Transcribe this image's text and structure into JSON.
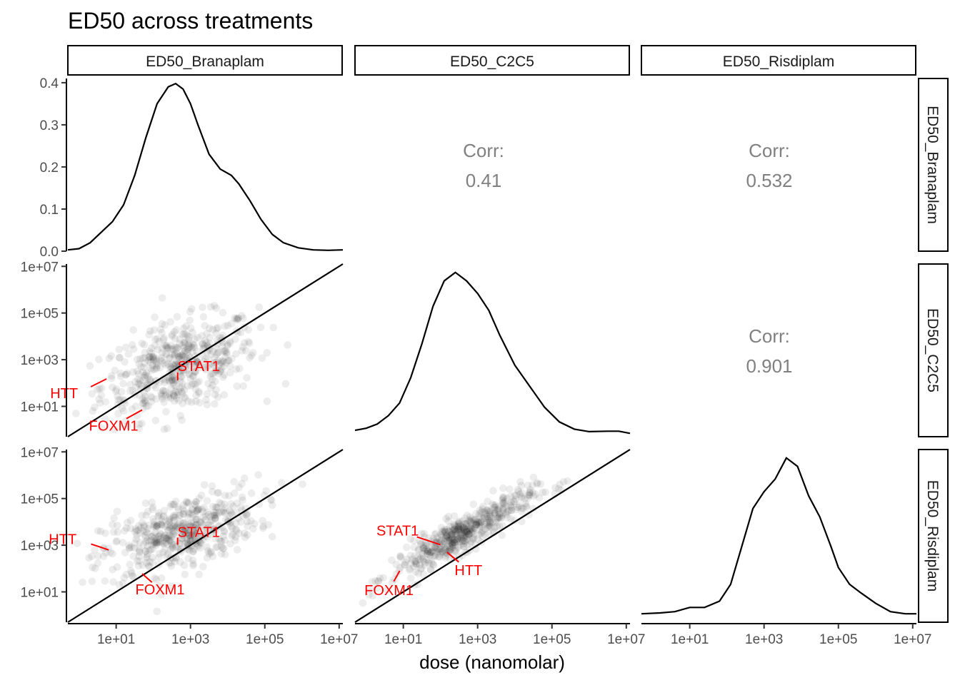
{
  "title": "ED50 across treatments",
  "xlabel": "dose (nanomolar)",
  "colors": {
    "points": "#000000",
    "labels": "#ff0000",
    "corr": "#808080",
    "line": "#000000"
  },
  "chart_data": {
    "type": "scatter",
    "variables": [
      "ED50_Branaplam",
      "ED50_C2C5",
      "ED50_Risdiplam"
    ],
    "column_strips": [
      "ED50_Branaplam",
      "ED50_C2C5",
      "ED50_Risdiplam"
    ],
    "row_strips": [
      "ED50_Branaplam",
      "ED50_C2C5",
      "ED50_Risdiplam"
    ],
    "axis_scale": "log10",
    "axis_range_log10": [
      -0.3,
      7.1
    ],
    "x_ticks": [
      "1e+01",
      "1e+03",
      "1e+05",
      "1e+07"
    ],
    "y_ticks": [
      "1e+01",
      "1e+03",
      "1e+05",
      "1e+07"
    ],
    "density_y_ticks": [
      "0.0",
      "0.1",
      "0.2",
      "0.3",
      "0.4"
    ],
    "density_ylim": [
      0,
      0.41
    ],
    "reference_line": "y = x",
    "correlations": [
      {
        "row": "ED50_Branaplam",
        "col": "ED50_C2C5",
        "label": "Corr:",
        "value": "0.41"
      },
      {
        "row": "ED50_Branaplam",
        "col": "ED50_Risdiplam",
        "label": "Corr:",
        "value": "0.532"
      },
      {
        "row": "ED50_C2C5",
        "col": "ED50_Risdiplam",
        "label": "Corr:",
        "value": "0.901"
      }
    ],
    "densities": {
      "ED50_Branaplam": [
        [
          -0.3,
          0.003
        ],
        [
          0.0,
          0.006
        ],
        [
          0.3,
          0.02
        ],
        [
          0.6,
          0.045
        ],
        [
          0.9,
          0.07
        ],
        [
          1.2,
          0.11
        ],
        [
          1.5,
          0.18
        ],
        [
          1.8,
          0.27
        ],
        [
          2.1,
          0.35
        ],
        [
          2.4,
          0.39
        ],
        [
          2.6,
          0.398
        ],
        [
          2.8,
          0.385
        ],
        [
          3.0,
          0.35
        ],
        [
          3.2,
          0.3
        ],
        [
          3.5,
          0.23
        ],
        [
          3.8,
          0.195
        ],
        [
          4.1,
          0.18
        ],
        [
          4.3,
          0.16
        ],
        [
          4.6,
          0.12
        ],
        [
          4.9,
          0.075
        ],
        [
          5.2,
          0.04
        ],
        [
          5.5,
          0.02
        ],
        [
          5.9,
          0.008
        ],
        [
          6.3,
          0.003
        ],
        [
          6.7,
          0.002
        ],
        [
          7.1,
          0.003
        ]
      ],
      "ED50_C2C5": [
        [
          -0.3,
          0.015
        ],
        [
          0.0,
          0.02
        ],
        [
          0.3,
          0.03
        ],
        [
          0.6,
          0.05
        ],
        [
          0.9,
          0.08
        ],
        [
          1.2,
          0.14
        ],
        [
          1.5,
          0.22
        ],
        [
          1.8,
          0.31
        ],
        [
          2.1,
          0.37
        ],
        [
          2.4,
          0.39
        ],
        [
          2.7,
          0.37
        ],
        [
          3.0,
          0.34
        ],
        [
          3.3,
          0.3
        ],
        [
          3.6,
          0.24
        ],
        [
          4.0,
          0.17
        ],
        [
          4.4,
          0.12
        ],
        [
          4.8,
          0.07
        ],
        [
          5.2,
          0.035
        ],
        [
          5.6,
          0.018
        ],
        [
          6.0,
          0.012
        ],
        [
          6.5,
          0.013
        ],
        [
          6.8,
          0.013
        ],
        [
          7.1,
          0.008
        ]
      ],
      "ED50_Risdiplam": [
        [
          -0.3,
          0.02
        ],
        [
          0.2,
          0.022
        ],
        [
          0.6,
          0.025
        ],
        [
          1.0,
          0.035
        ],
        [
          1.4,
          0.035
        ],
        [
          1.8,
          0.05
        ],
        [
          2.1,
          0.09
        ],
        [
          2.4,
          0.18
        ],
        [
          2.7,
          0.27
        ],
        [
          3.0,
          0.31
        ],
        [
          3.3,
          0.34
        ],
        [
          3.6,
          0.39
        ],
        [
          3.9,
          0.37
        ],
        [
          4.2,
          0.3
        ],
        [
          4.5,
          0.25
        ],
        [
          4.8,
          0.18
        ],
        [
          5.0,
          0.13
        ],
        [
          5.3,
          0.09
        ],
        [
          5.6,
          0.07
        ],
        [
          6.0,
          0.045
        ],
        [
          6.4,
          0.025
        ],
        [
          6.8,
          0.02
        ],
        [
          7.1,
          0.02
        ]
      ]
    },
    "highlighted_genes": [
      {
        "row": "ED50_C2C5",
        "col": "ED50_Branaplam",
        "name": "HTT",
        "x": 5.5,
        "y": 150
      },
      {
        "row": "ED50_C2C5",
        "col": "ED50_Branaplam",
        "name": "FOXM1",
        "x": 50,
        "y": 7
      },
      {
        "row": "ED50_C2C5",
        "col": "ED50_Branaplam",
        "name": "STAT1",
        "x": 450,
        "y": 130
      },
      {
        "row": "ED50_Risdiplam",
        "col": "ED50_Branaplam",
        "name": "HTT",
        "x": 6.3,
        "y": 630
      },
      {
        "row": "ED50_Risdiplam",
        "col": "ED50_Branaplam",
        "name": "FOXM1",
        "x": 50,
        "y": 60
      },
      {
        "row": "ED50_Risdiplam",
        "col": "ED50_Branaplam",
        "name": "STAT1",
        "x": 450,
        "y": 1050
      },
      {
        "row": "ED50_Risdiplam",
        "col": "ED50_C2C5",
        "name": "STAT1",
        "x": 100,
        "y": 1050
      },
      {
        "row": "ED50_Risdiplam",
        "col": "ED50_C2C5",
        "name": "FOXM1",
        "x": 8,
        "y": 80
      },
      {
        "row": "ED50_Risdiplam",
        "col": "ED50_C2C5",
        "name": "HTT",
        "x": 150,
        "y": 500
      }
    ]
  }
}
